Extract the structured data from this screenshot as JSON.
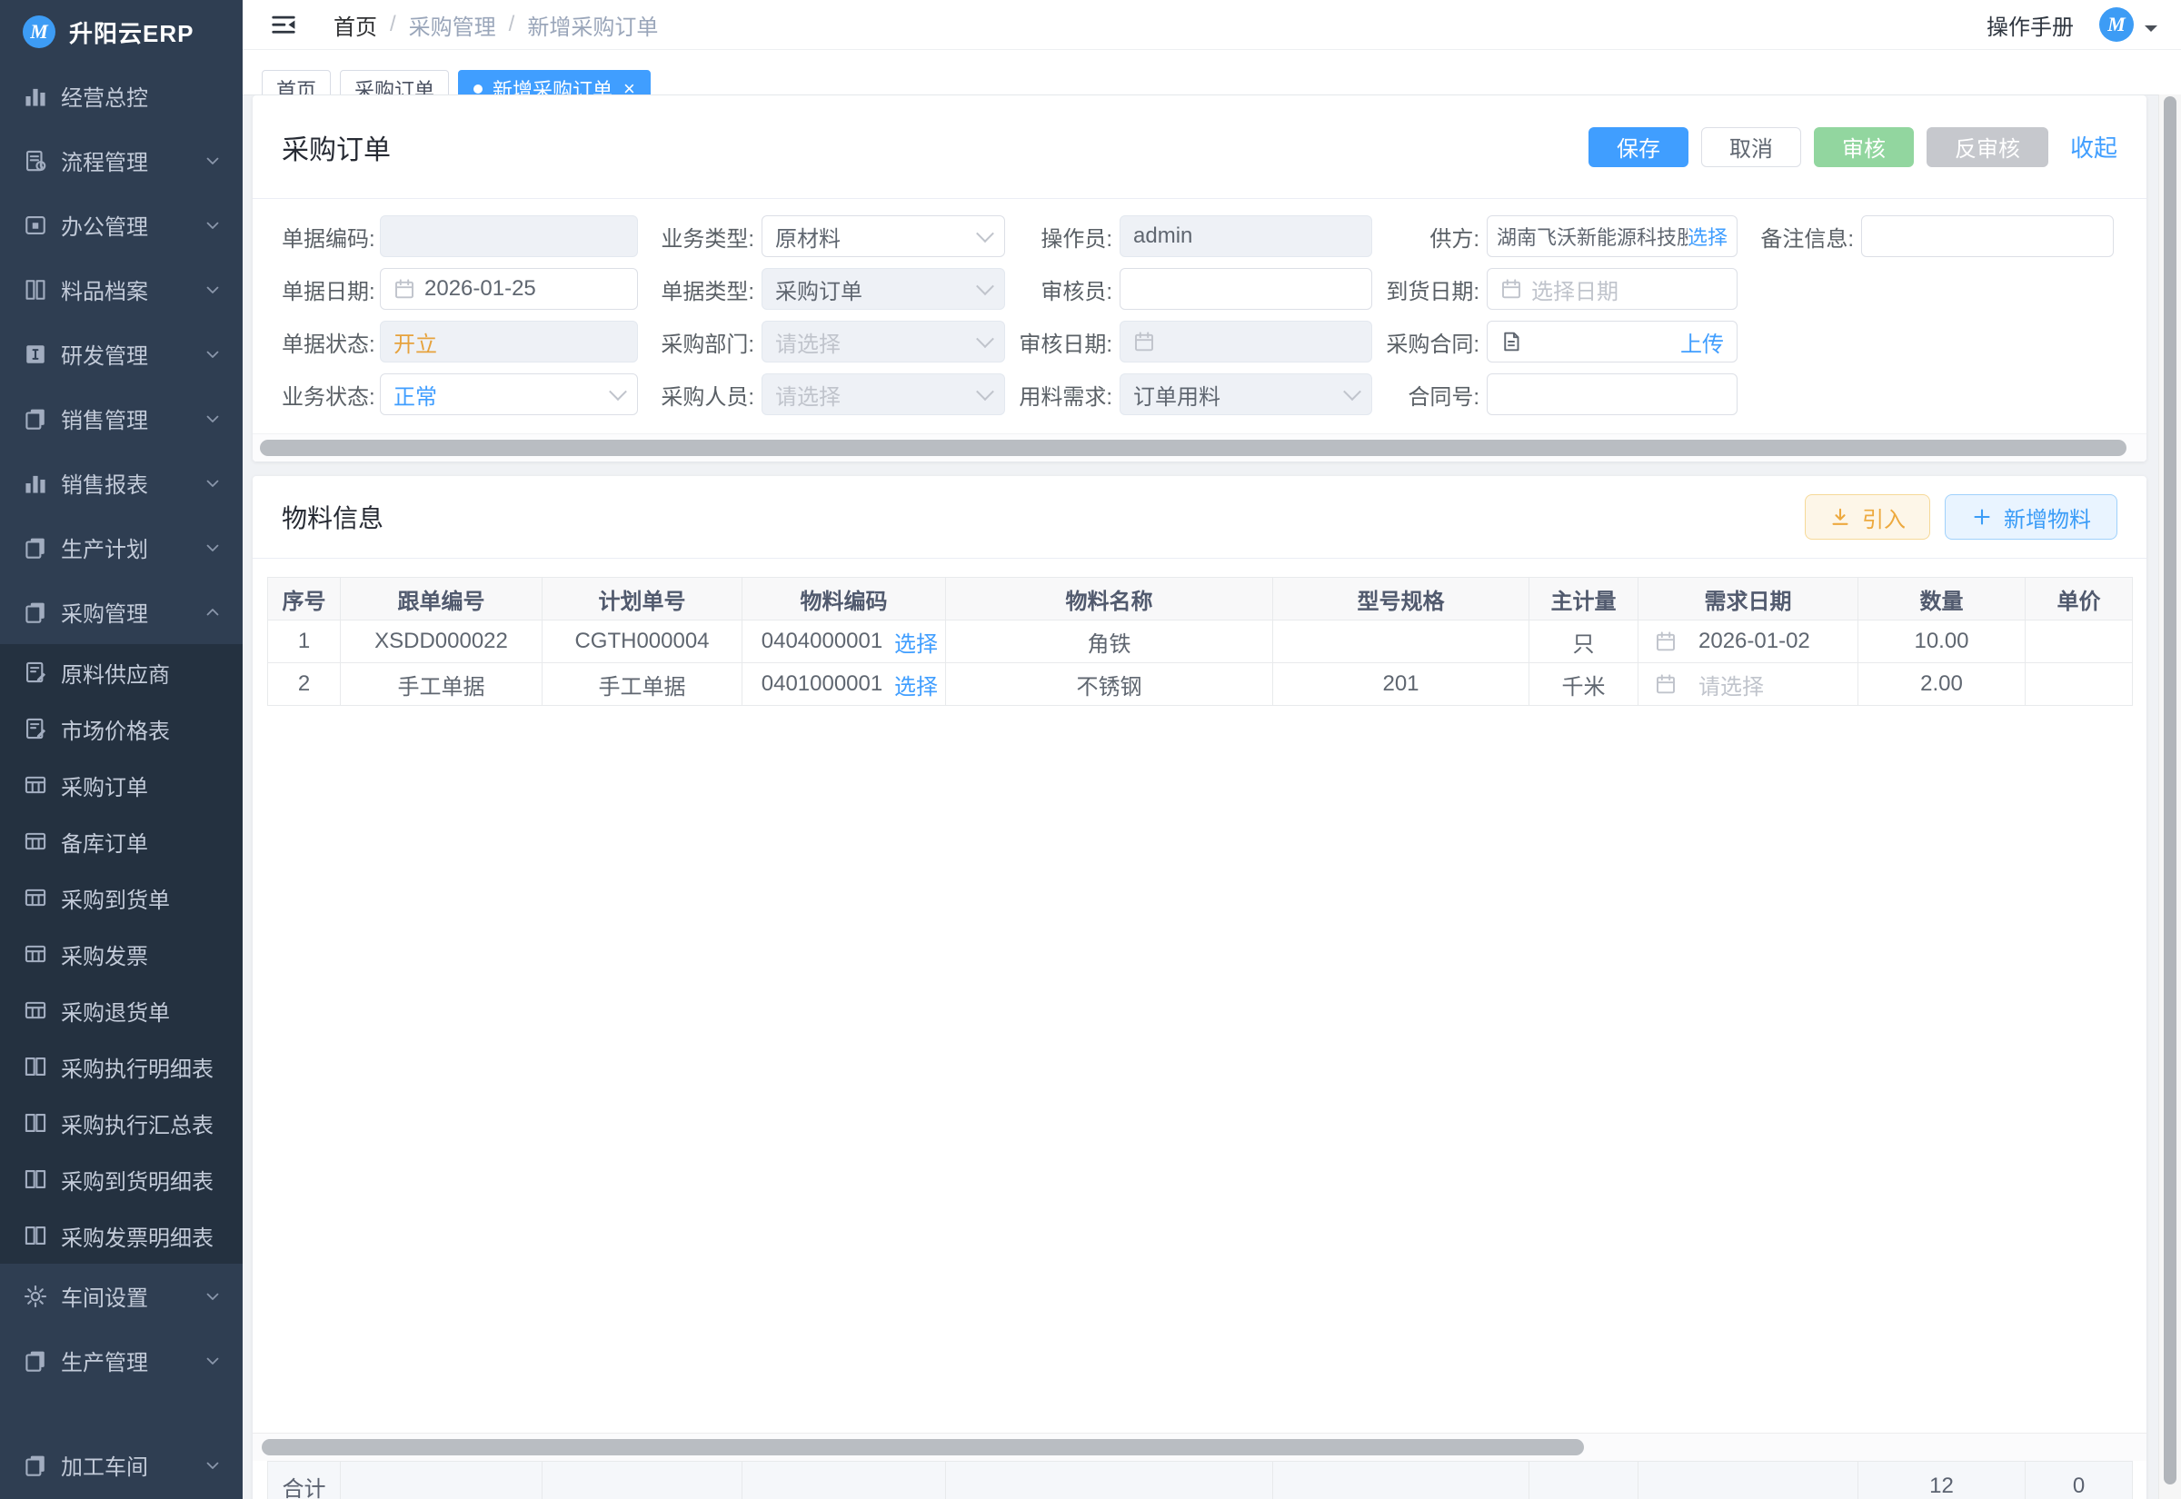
{
  "app": {
    "title": "升阳云ERP",
    "logo_letter": "M",
    "avatar_letter": "M"
  },
  "topbar": {
    "breadcrumbs": [
      "首页",
      "采购管理",
      "新增采购订单"
    ],
    "separator": "/",
    "manual_label": "操作手册"
  },
  "tabs": [
    {
      "name": "tab-home",
      "label": "首页",
      "active": false
    },
    {
      "name": "tab-purchase-order-list",
      "label": "采购订单",
      "active": false
    },
    {
      "name": "tab-new-purchase-order",
      "label": "新增采购订单",
      "active": true,
      "close": "×"
    }
  ],
  "sidebar": {
    "items": [
      {
        "name": "business-overview",
        "icon": "bar-chart",
        "label": "经营总控"
      },
      {
        "name": "process-mgmt",
        "icon": "flow-doc",
        "label": "流程管理",
        "chevron": "down"
      },
      {
        "name": "office-mgmt",
        "icon": "office",
        "label": "办公管理",
        "chevron": "down"
      },
      {
        "name": "material-archives",
        "icon": "books",
        "label": "料品档案",
        "chevron": "down"
      },
      {
        "name": "rd-mgmt",
        "icon": "dev",
        "label": "研发管理",
        "chevron": "down"
      },
      {
        "name": "sales-mgmt",
        "icon": "copy-pages",
        "label": "销售管理",
        "chevron": "down"
      },
      {
        "name": "sales-reports",
        "icon": "bar-chart",
        "label": "销售报表",
        "chevron": "down"
      },
      {
        "name": "production-plan",
        "icon": "copy-pages",
        "label": "生产计划",
        "chevron": "down"
      },
      {
        "name": "purchase-mgmt",
        "icon": "copy-pages",
        "label": "采购管理",
        "chevron": "up"
      },
      {
        "name": "raw-material-supplier",
        "icon": "doc-edit",
        "label": "原料供应商",
        "sub": true
      },
      {
        "name": "market-price-list",
        "icon": "doc-edit",
        "label": "市场价格表",
        "sub": true
      },
      {
        "name": "purchase-order",
        "icon": "grid-table",
        "label": "采购订单",
        "sub": true
      },
      {
        "name": "stock-order",
        "icon": "grid-table",
        "label": "备库订单",
        "sub": true
      },
      {
        "name": "purchase-arrival-order",
        "icon": "grid-table",
        "label": "采购到货单",
        "sub": true
      },
      {
        "name": "purchase-invoice",
        "icon": "grid-table",
        "label": "采购发票",
        "sub": true
      },
      {
        "name": "purchase-return-order",
        "icon": "grid-table",
        "label": "采购退货单",
        "sub": true
      },
      {
        "name": "purchase-exec-detail",
        "icon": "open-book",
        "label": "采购执行明细表",
        "sub": true
      },
      {
        "name": "purchase-exec-summary",
        "icon": "open-book",
        "label": "采购执行汇总表",
        "sub": true
      },
      {
        "name": "purchase-arrival-detail",
        "icon": "open-book",
        "label": "采购到货明细表",
        "sub": true
      },
      {
        "name": "purchase-invoice-detail",
        "icon": "open-book",
        "label": "采购发票明细表",
        "sub": true
      },
      {
        "name": "workshop-settings",
        "icon": "gear",
        "label": "车间设置",
        "chevron": "down"
      },
      {
        "name": "production-mgmt",
        "icon": "copy-pages",
        "label": "生产管理",
        "chevron": "down"
      },
      {
        "name": "processing-workshop",
        "icon": "copy-pages",
        "label": "加工车间",
        "chevron": "down",
        "partial": true
      }
    ]
  },
  "order_panel": {
    "title": "采购订单",
    "actions": {
      "save": "保存",
      "cancel": "取消",
      "audit": "审核",
      "unaudit": "反审核",
      "collapse": "收起"
    },
    "fields": {
      "doc_code": {
        "label": "单据编码:",
        "value": ""
      },
      "biz_type": {
        "label": "业务类型:",
        "value": "原材料"
      },
      "operator": {
        "label": "操作员:",
        "value": "admin"
      },
      "supplier": {
        "label": "供方:",
        "value": "湖南飞沃新能源科技股份",
        "select_label": "选择"
      },
      "remark": {
        "label": "备注信息:",
        "value": ""
      },
      "doc_date": {
        "label": "单据日期:",
        "value": "2026-01-25"
      },
      "doc_type": {
        "label": "单据类型:",
        "value": "采购订单"
      },
      "auditor": {
        "label": "审核员:",
        "value": ""
      },
      "arrival_date": {
        "label": "到货日期:",
        "placeholder": "选择日期"
      },
      "doc_status": {
        "label": "单据状态:",
        "value": "开立"
      },
      "purchase_dept": {
        "label": "采购部门:",
        "placeholder": "请选择"
      },
      "audit_date": {
        "label": "审核日期:",
        "value": ""
      },
      "purchase_contract": {
        "label": "采购合同:",
        "upload_label": "上传"
      },
      "biz_status": {
        "label": "业务状态:",
        "value": "正常"
      },
      "purchase_staff": {
        "label": "采购人员:",
        "placeholder": "请选择"
      },
      "material_demand": {
        "label": "用料需求:",
        "value": "订单用料"
      },
      "contract_no": {
        "label": "合同号:",
        "value": ""
      }
    }
  },
  "materials_panel": {
    "title": "物料信息",
    "import_label": "引入",
    "add_label": "新增物料",
    "table": {
      "headers": [
        "序号",
        "跟单编号",
        "计划单号",
        "物料编码",
        "物料名称",
        "型号规格",
        "主计量",
        "需求日期",
        "数量",
        "单价"
      ],
      "rows": [
        {
          "seq": "1",
          "follow_no": "XSDD000022",
          "plan_no": "CGTH000004",
          "material_code": "0404000001",
          "select_label": "选择",
          "material_name": "角铁",
          "spec": "",
          "unit": "只",
          "need_date": "2026-01-02",
          "need_date_is_placeholder": false,
          "qty": "10.00",
          "price": ""
        },
        {
          "seq": "2",
          "follow_no": "手工单据",
          "plan_no": "手工单据",
          "material_code": "0401000001",
          "select_label": "选择",
          "material_name": "不锈钢",
          "spec": "201",
          "unit": "千米",
          "need_date": "请选择",
          "need_date_is_placeholder": true,
          "qty": "2.00",
          "price": ""
        }
      ],
      "footer": {
        "label": "合计",
        "qty_total": "12",
        "price_total": "0"
      }
    }
  }
}
